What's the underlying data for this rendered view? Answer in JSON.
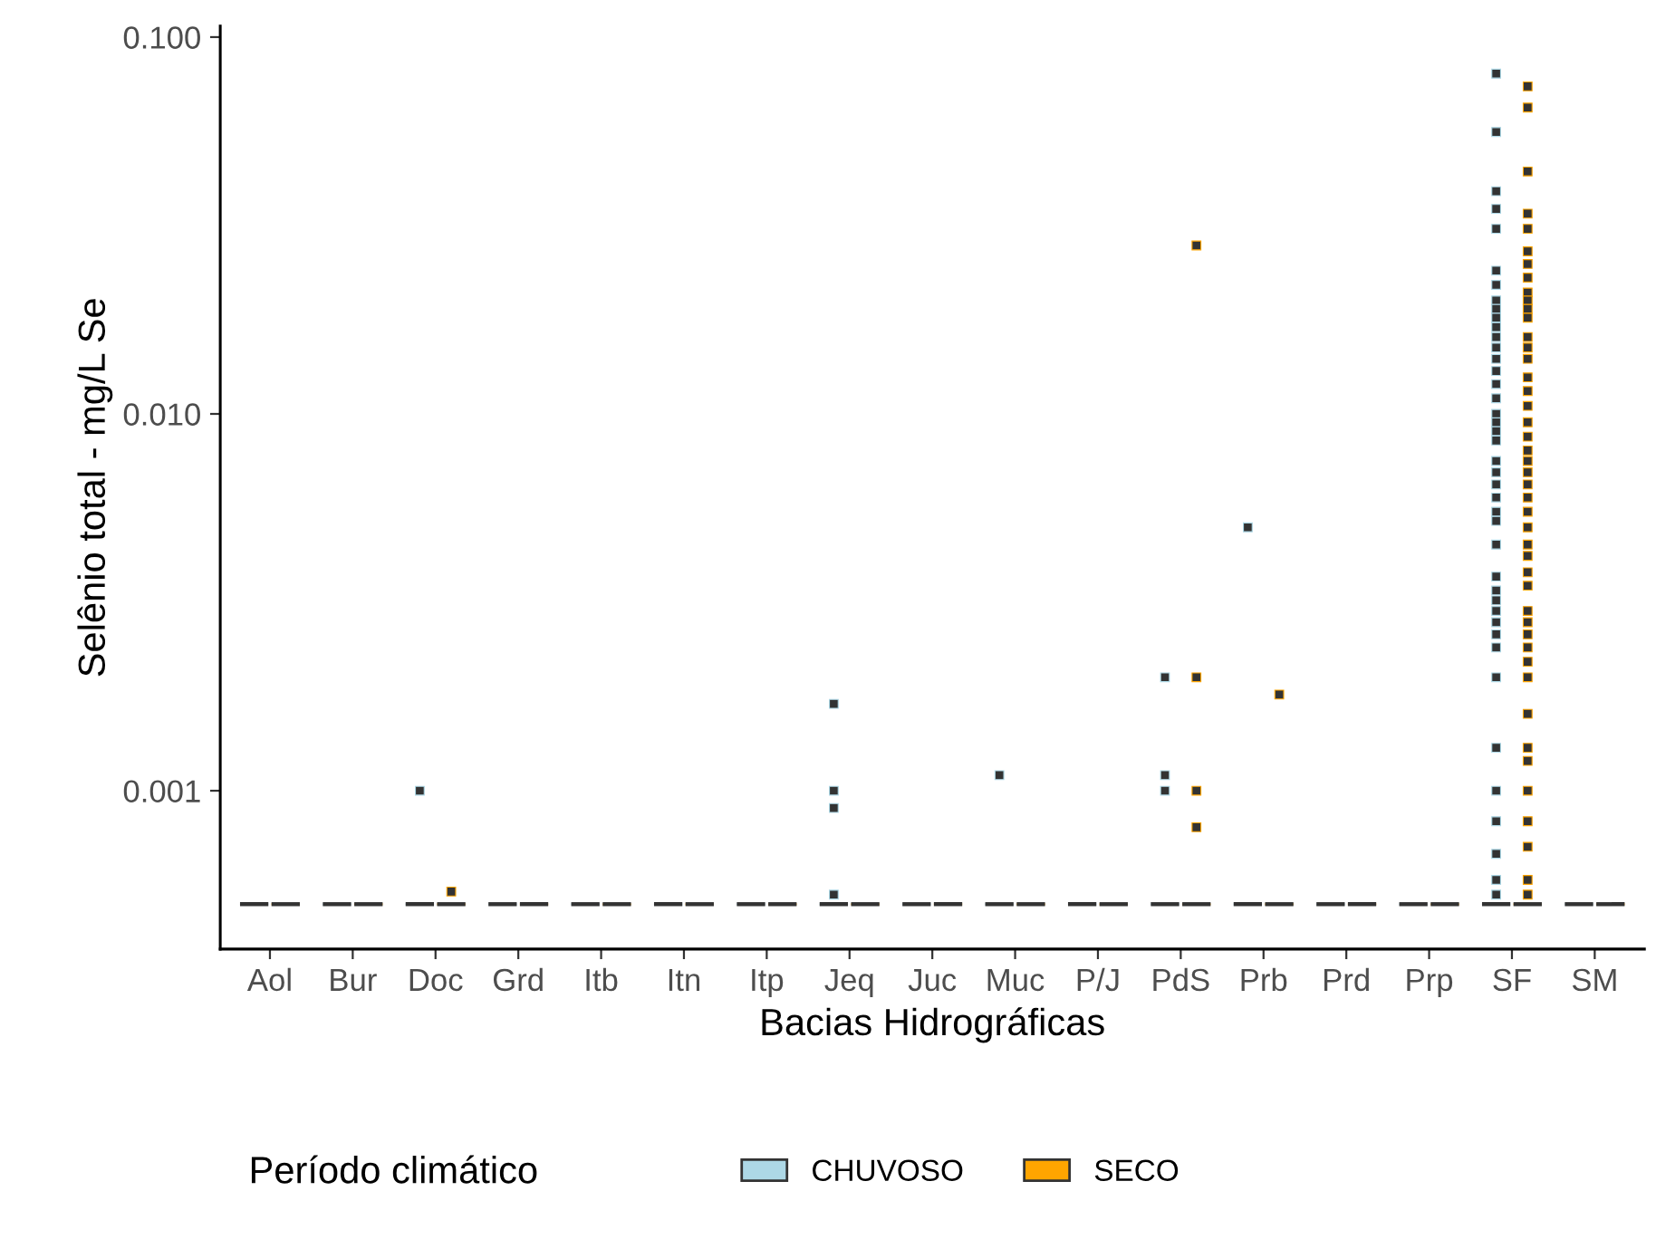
{
  "chart_data": {
    "type": "box",
    "xlabel": "Bacias Hidrográficas",
    "ylabel": "Selênio total - mg/L Se",
    "legend_title": "Período climático",
    "categories": [
      "Aol",
      "Bur",
      "Doc",
      "Grd",
      "Itb",
      "Itn",
      "Itp",
      "Jeq",
      "Juc",
      "Muc",
      "P/J",
      "PdS",
      "Prb",
      "Prd",
      "Prp",
      "SF",
      "SM"
    ],
    "log": true,
    "ylim": [
      0.00038,
      0.107
    ],
    "yticks": [
      {
        "value": 0.001,
        "label": "0.001"
      },
      {
        "value": 0.01,
        "label": "0.010"
      },
      {
        "value": 0.1,
        "label": "0.100"
      }
    ],
    "grid": false,
    "legend": "bottom",
    "marker": "square",
    "series": [
      {
        "name": "CHUVOSO",
        "color": "#add8e6",
        "boxes": [
          {
            "low": 0.0005,
            "q1": 0.0005,
            "median": 0.0005,
            "q3": 0.0005,
            "high": 0.0005
          },
          {
            "low": 0.0005,
            "q1": 0.0005,
            "median": 0.0005,
            "q3": 0.0005,
            "high": 0.0005
          },
          {
            "low": 0.0005,
            "q1": 0.0005,
            "median": 0.0005,
            "q3": 0.0005,
            "high": 0.0005,
            "outliers": [
              0.001
            ]
          },
          {
            "low": 0.0005,
            "q1": 0.0005,
            "median": 0.0005,
            "q3": 0.0005,
            "high": 0.0005
          },
          {
            "low": 0.0005,
            "q1": 0.0005,
            "median": 0.0005,
            "q3": 0.0005,
            "high": 0.0005
          },
          {
            "low": 0.0005,
            "q1": 0.0005,
            "median": 0.0005,
            "q3": 0.0005,
            "high": 0.0005
          },
          {
            "low": 0.0005,
            "q1": 0.0005,
            "median": 0.0005,
            "q3": 0.0005,
            "high": 0.0005
          },
          {
            "low": 0.0005,
            "q1": 0.0005,
            "median": 0.0005,
            "q3": 0.0005,
            "high": 0.0005,
            "outliers": [
              0.0017,
              0.001,
              0.0009,
              0.00053
            ]
          },
          {
            "low": 0.0005,
            "q1": 0.0005,
            "median": 0.0005,
            "q3": 0.0005,
            "high": 0.0005
          },
          {
            "low": 0.0005,
            "q1": 0.0005,
            "median": 0.0005,
            "q3": 0.0005,
            "high": 0.0005,
            "outliers": [
              0.0011
            ]
          },
          {
            "low": 0.0005,
            "q1": 0.0005,
            "median": 0.0005,
            "q3": 0.0005,
            "high": 0.0005
          },
          {
            "low": 0.0005,
            "q1": 0.0005,
            "median": 0.0005,
            "q3": 0.0005,
            "high": 0.0005,
            "outliers": [
              0.002,
              0.0011,
              0.001
            ]
          },
          {
            "low": 0.0005,
            "q1": 0.0005,
            "median": 0.0005,
            "q3": 0.0005,
            "high": 0.0005,
            "outliers": [
              0.005
            ]
          },
          {
            "low": 0.0005,
            "q1": 0.0005,
            "median": 0.0005,
            "q3": 0.0005,
            "high": 0.0005
          },
          {
            "low": 0.0005,
            "q1": 0.0005,
            "median": 0.0005,
            "q3": 0.0005,
            "high": 0.0005
          },
          {
            "low": 0.0005,
            "q1": 0.0005,
            "median": 0.0005,
            "q3": 0.0005,
            "high": 0.0005,
            "outliers": [
              0.08,
              0.056,
              0.039,
              0.035,
              0.031,
              0.024,
              0.022,
              0.02,
              0.019,
              0.018,
              0.017,
              0.016,
              0.015,
              0.014,
              0.013,
              0.012,
              0.011,
              0.01,
              0.0095,
              0.009,
              0.0085,
              0.0075,
              0.007,
              0.0065,
              0.006,
              0.0055,
              0.0052,
              0.0045,
              0.0037,
              0.0034,
              0.0032,
              0.003,
              0.0028,
              0.0026,
              0.0024,
              0.002,
              0.0013,
              0.001,
              0.00083,
              0.00068,
              0.00058,
              0.00053
            ]
          },
          {
            "low": 0.0005,
            "q1": 0.0005,
            "median": 0.0005,
            "q3": 0.0005,
            "high": 0.0005
          }
        ]
      },
      {
        "name": "SECO",
        "color": "#ffa500",
        "boxes": [
          {
            "low": 0.0005,
            "q1": 0.0005,
            "median": 0.0005,
            "q3": 0.0005,
            "high": 0.0005
          },
          {
            "low": 0.0005,
            "q1": 0.0005,
            "median": 0.0005,
            "q3": 0.0005,
            "high": 0.0005
          },
          {
            "low": 0.0005,
            "q1": 0.0005,
            "median": 0.0005,
            "q3": 0.0005,
            "high": 0.0005,
            "outliers": [
              0.00054
            ]
          },
          {
            "low": 0.0005,
            "q1": 0.0005,
            "median": 0.0005,
            "q3": 0.0005,
            "high": 0.0005
          },
          {
            "low": 0.0005,
            "q1": 0.0005,
            "median": 0.0005,
            "q3": 0.0005,
            "high": 0.0005
          },
          {
            "low": 0.0005,
            "q1": 0.0005,
            "median": 0.0005,
            "q3": 0.0005,
            "high": 0.0005
          },
          {
            "low": 0.0005,
            "q1": 0.0005,
            "median": 0.0005,
            "q3": 0.0005,
            "high": 0.0005
          },
          {
            "low": 0.0005,
            "q1": 0.0005,
            "median": 0.0005,
            "q3": 0.0005,
            "high": 0.0005
          },
          {
            "low": 0.0005,
            "q1": 0.0005,
            "median": 0.0005,
            "q3": 0.0005,
            "high": 0.0005
          },
          {
            "low": 0.0005,
            "q1": 0.0005,
            "median": 0.0005,
            "q3": 0.0005,
            "high": 0.0005
          },
          {
            "low": 0.0005,
            "q1": 0.0005,
            "median": 0.0005,
            "q3": 0.0005,
            "high": 0.0005
          },
          {
            "low": 0.0005,
            "q1": 0.0005,
            "median": 0.0005,
            "q3": 0.0005,
            "high": 0.0005,
            "outliers": [
              0.028,
              0.002,
              0.001,
              0.0008
            ]
          },
          {
            "low": 0.0005,
            "q1": 0.0005,
            "median": 0.0005,
            "q3": 0.0005,
            "high": 0.0005,
            "outliers": [
              0.0018
            ]
          },
          {
            "low": 0.0005,
            "q1": 0.0005,
            "median": 0.0005,
            "q3": 0.0005,
            "high": 0.0005
          },
          {
            "low": 0.0005,
            "q1": 0.0005,
            "median": 0.0005,
            "q3": 0.0005,
            "high": 0.0005
          },
          {
            "low": 0.0005,
            "q1": 0.0005,
            "median": 0.0005,
            "q3": 0.0005,
            "high": 0.0005,
            "outliers": [
              0.074,
              0.065,
              0.044,
              0.034,
              0.031,
              0.027,
              0.025,
              0.023,
              0.021,
              0.02,
              0.019,
              0.018,
              0.016,
              0.015,
              0.014,
              0.0125,
              0.0115,
              0.0105,
              0.0095,
              0.0087,
              0.008,
              0.0075,
              0.007,
              0.0065,
              0.006,
              0.0055,
              0.005,
              0.0045,
              0.0042,
              0.0038,
              0.0035,
              0.003,
              0.0028,
              0.0026,
              0.0024,
              0.0022,
              0.002,
              0.0016,
              0.0013,
              0.0012,
              0.001,
              0.00083,
              0.00071,
              0.00058,
              0.00053
            ]
          },
          {
            "low": 0.0005,
            "q1": 0.0005,
            "median": 0.0005,
            "q3": 0.0005,
            "high": 0.0005
          }
        ]
      }
    ]
  }
}
